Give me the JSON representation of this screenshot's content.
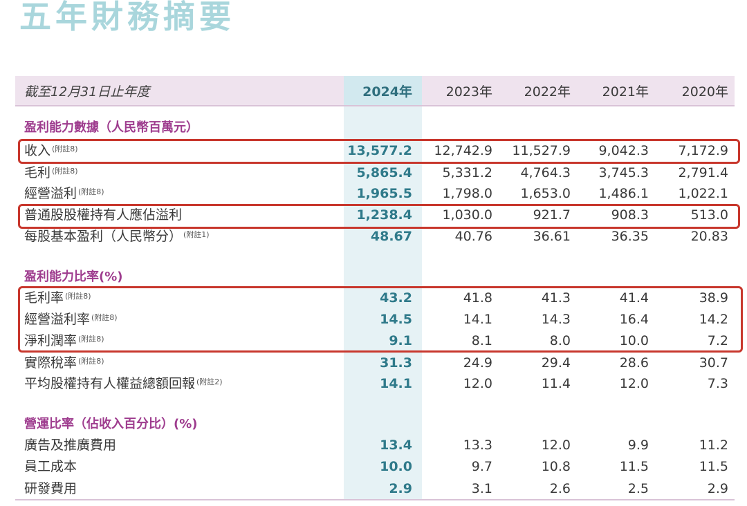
{
  "title": "五年財務摘要",
  "header": {
    "period_label": "截至12月31日止年度",
    "years": [
      "2024年",
      "2023年",
      "2022年",
      "2021年",
      "2020年"
    ]
  },
  "sections": [
    {
      "title": "盈利能力數據（人民幣百萬元）",
      "rows": [
        {
          "label": "收入",
          "note": "(附註8)",
          "values": [
            "13,577.2",
            "12,742.9",
            "11,527.9",
            "9,042.3",
            "7,172.9"
          ]
        },
        {
          "label": "毛利",
          "note": "(附註8)",
          "values": [
            "5,865.4",
            "5,331.2",
            "4,764.3",
            "3,745.3",
            "2,791.4"
          ]
        },
        {
          "label": "經營溢利",
          "note": "(附註8)",
          "values": [
            "1,965.5",
            "1,798.0",
            "1,653.0",
            "1,486.1",
            "1,022.1"
          ]
        },
        {
          "label": "普通股股權持有人應佔溢利",
          "note": "",
          "values": [
            "1,238.4",
            "1,030.0",
            "921.7",
            "908.3",
            "513.0"
          ]
        },
        {
          "label": "每股基本盈利（人民幣分）",
          "note": "(附註1)",
          "values": [
            "48.67",
            "40.76",
            "36.61",
            "36.35",
            "20.83"
          ]
        }
      ]
    },
    {
      "title": "盈利能力比率(%)",
      "rows": [
        {
          "label": "毛利率",
          "note": "(附註8)",
          "values": [
            "43.2",
            "41.8",
            "41.3",
            "41.4",
            "38.9"
          ]
        },
        {
          "label": "經營溢利率",
          "note": "(附註8)",
          "values": [
            "14.5",
            "14.1",
            "14.3",
            "16.4",
            "14.2"
          ]
        },
        {
          "label": "淨利潤率",
          "note": "(附註8)",
          "values": [
            "9.1",
            "8.1",
            "8.0",
            "10.0",
            "7.2"
          ]
        },
        {
          "label": "實際稅率",
          "note": "(附註8)",
          "values": [
            "31.3",
            "24.9",
            "29.4",
            "28.6",
            "30.7"
          ]
        },
        {
          "label": "平均股權持有人權益總額回報",
          "note": "(附註2)",
          "values": [
            "14.1",
            "12.0",
            "11.4",
            "12.0",
            "7.3"
          ]
        }
      ]
    },
    {
      "title": "營運比率（佔收入百分比）(%)",
      "rows": [
        {
          "label": "廣告及推廣費用",
          "note": "",
          "values": [
            "13.4",
            "13.3",
            "12.0",
            "9.9",
            "11.2"
          ]
        },
        {
          "label": "員工成本",
          "note": "",
          "values": [
            "10.0",
            "9.7",
            "10.8",
            "11.5",
            "11.5"
          ]
        },
        {
          "label": "研發費用",
          "note": "",
          "values": [
            "2.9",
            "3.1",
            "2.6",
            "2.5",
            "2.9"
          ]
        }
      ]
    }
  ],
  "colors": {
    "title": "#a9d6dc",
    "section": "#9e3c8e",
    "highlight_text": "#2f7a8a",
    "highlight_box": "#c8372d",
    "header_band": "#efe3ee",
    "current_year_band": "#e6f2f5"
  }
}
